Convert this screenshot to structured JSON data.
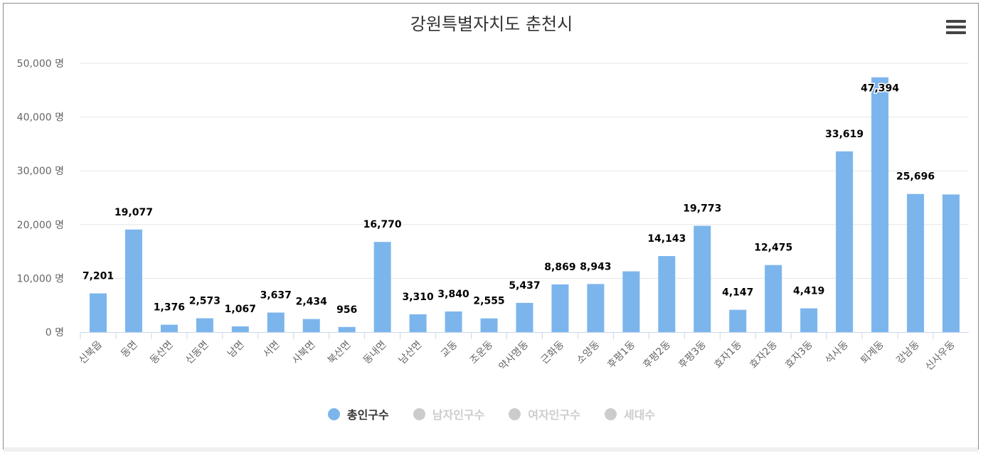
{
  "chart_data": {
    "type": "bar",
    "title": "강원특별자치도 춘천시",
    "categories": [
      "신북읍",
      "동면",
      "동산면",
      "신동면",
      "남면",
      "서면",
      "사북면",
      "북산면",
      "동내면",
      "남산면",
      "교동",
      "조운동",
      "약사명동",
      "근화동",
      "소양동",
      "후평1동",
      "후평2동",
      "후평3동",
      "효자1동",
      "효자2동",
      "효자3동",
      "석사동",
      "퇴계동",
      "강남동",
      "신사우동"
    ],
    "series": [
      {
        "name": "총인구수",
        "values": [
          7201,
          19077,
          1376,
          2573,
          1067,
          3637,
          2434,
          956,
          16770,
          3310,
          3840,
          2555,
          5437,
          8869,
          8943,
          11300,
          14143,
          19773,
          4147,
          12475,
          4419,
          33619,
          47394,
          25696,
          25600
        ],
        "labels": [
          "7,201",
          "19,077",
          "1,376",
          "2,573",
          "1,067",
          "3,637",
          "2,434",
          "956",
          "16,770",
          "3,310",
          "3,840",
          "2,555",
          "5,437",
          "8,869",
          "8,943",
          "",
          "14,143",
          "19,773",
          "4,147",
          "12,475",
          "4,419",
          "33,619",
          "47,394",
          "25,696",
          ""
        ]
      }
    ],
    "ylim": [
      0,
      50000
    ],
    "yticks": [
      0,
      10000,
      20000,
      30000,
      40000,
      50000
    ],
    "ytick_labels": [
      "0 명",
      "10,000 명",
      "20,000 명",
      "30,000 명",
      "40,000 명",
      "50,000 명"
    ],
    "xlabel": "",
    "ylabel": "",
    "grid": true,
    "legend_position": "bottom"
  },
  "legend": [
    {
      "label": "총인구수",
      "color": "#7cb5ec",
      "active": true
    },
    {
      "label": "남자인구수",
      "color": "#cccccc",
      "active": false
    },
    {
      "label": "여자인구수",
      "color": "#cccccc",
      "active": false
    },
    {
      "label": "세대수",
      "color": "#cccccc",
      "active": false
    }
  ],
  "colors": {
    "bar": "#7cb5ec",
    "active_text": "#333333",
    "inactive_text": "#cccccc"
  },
  "menu_icon": "hamburger-menu-icon"
}
